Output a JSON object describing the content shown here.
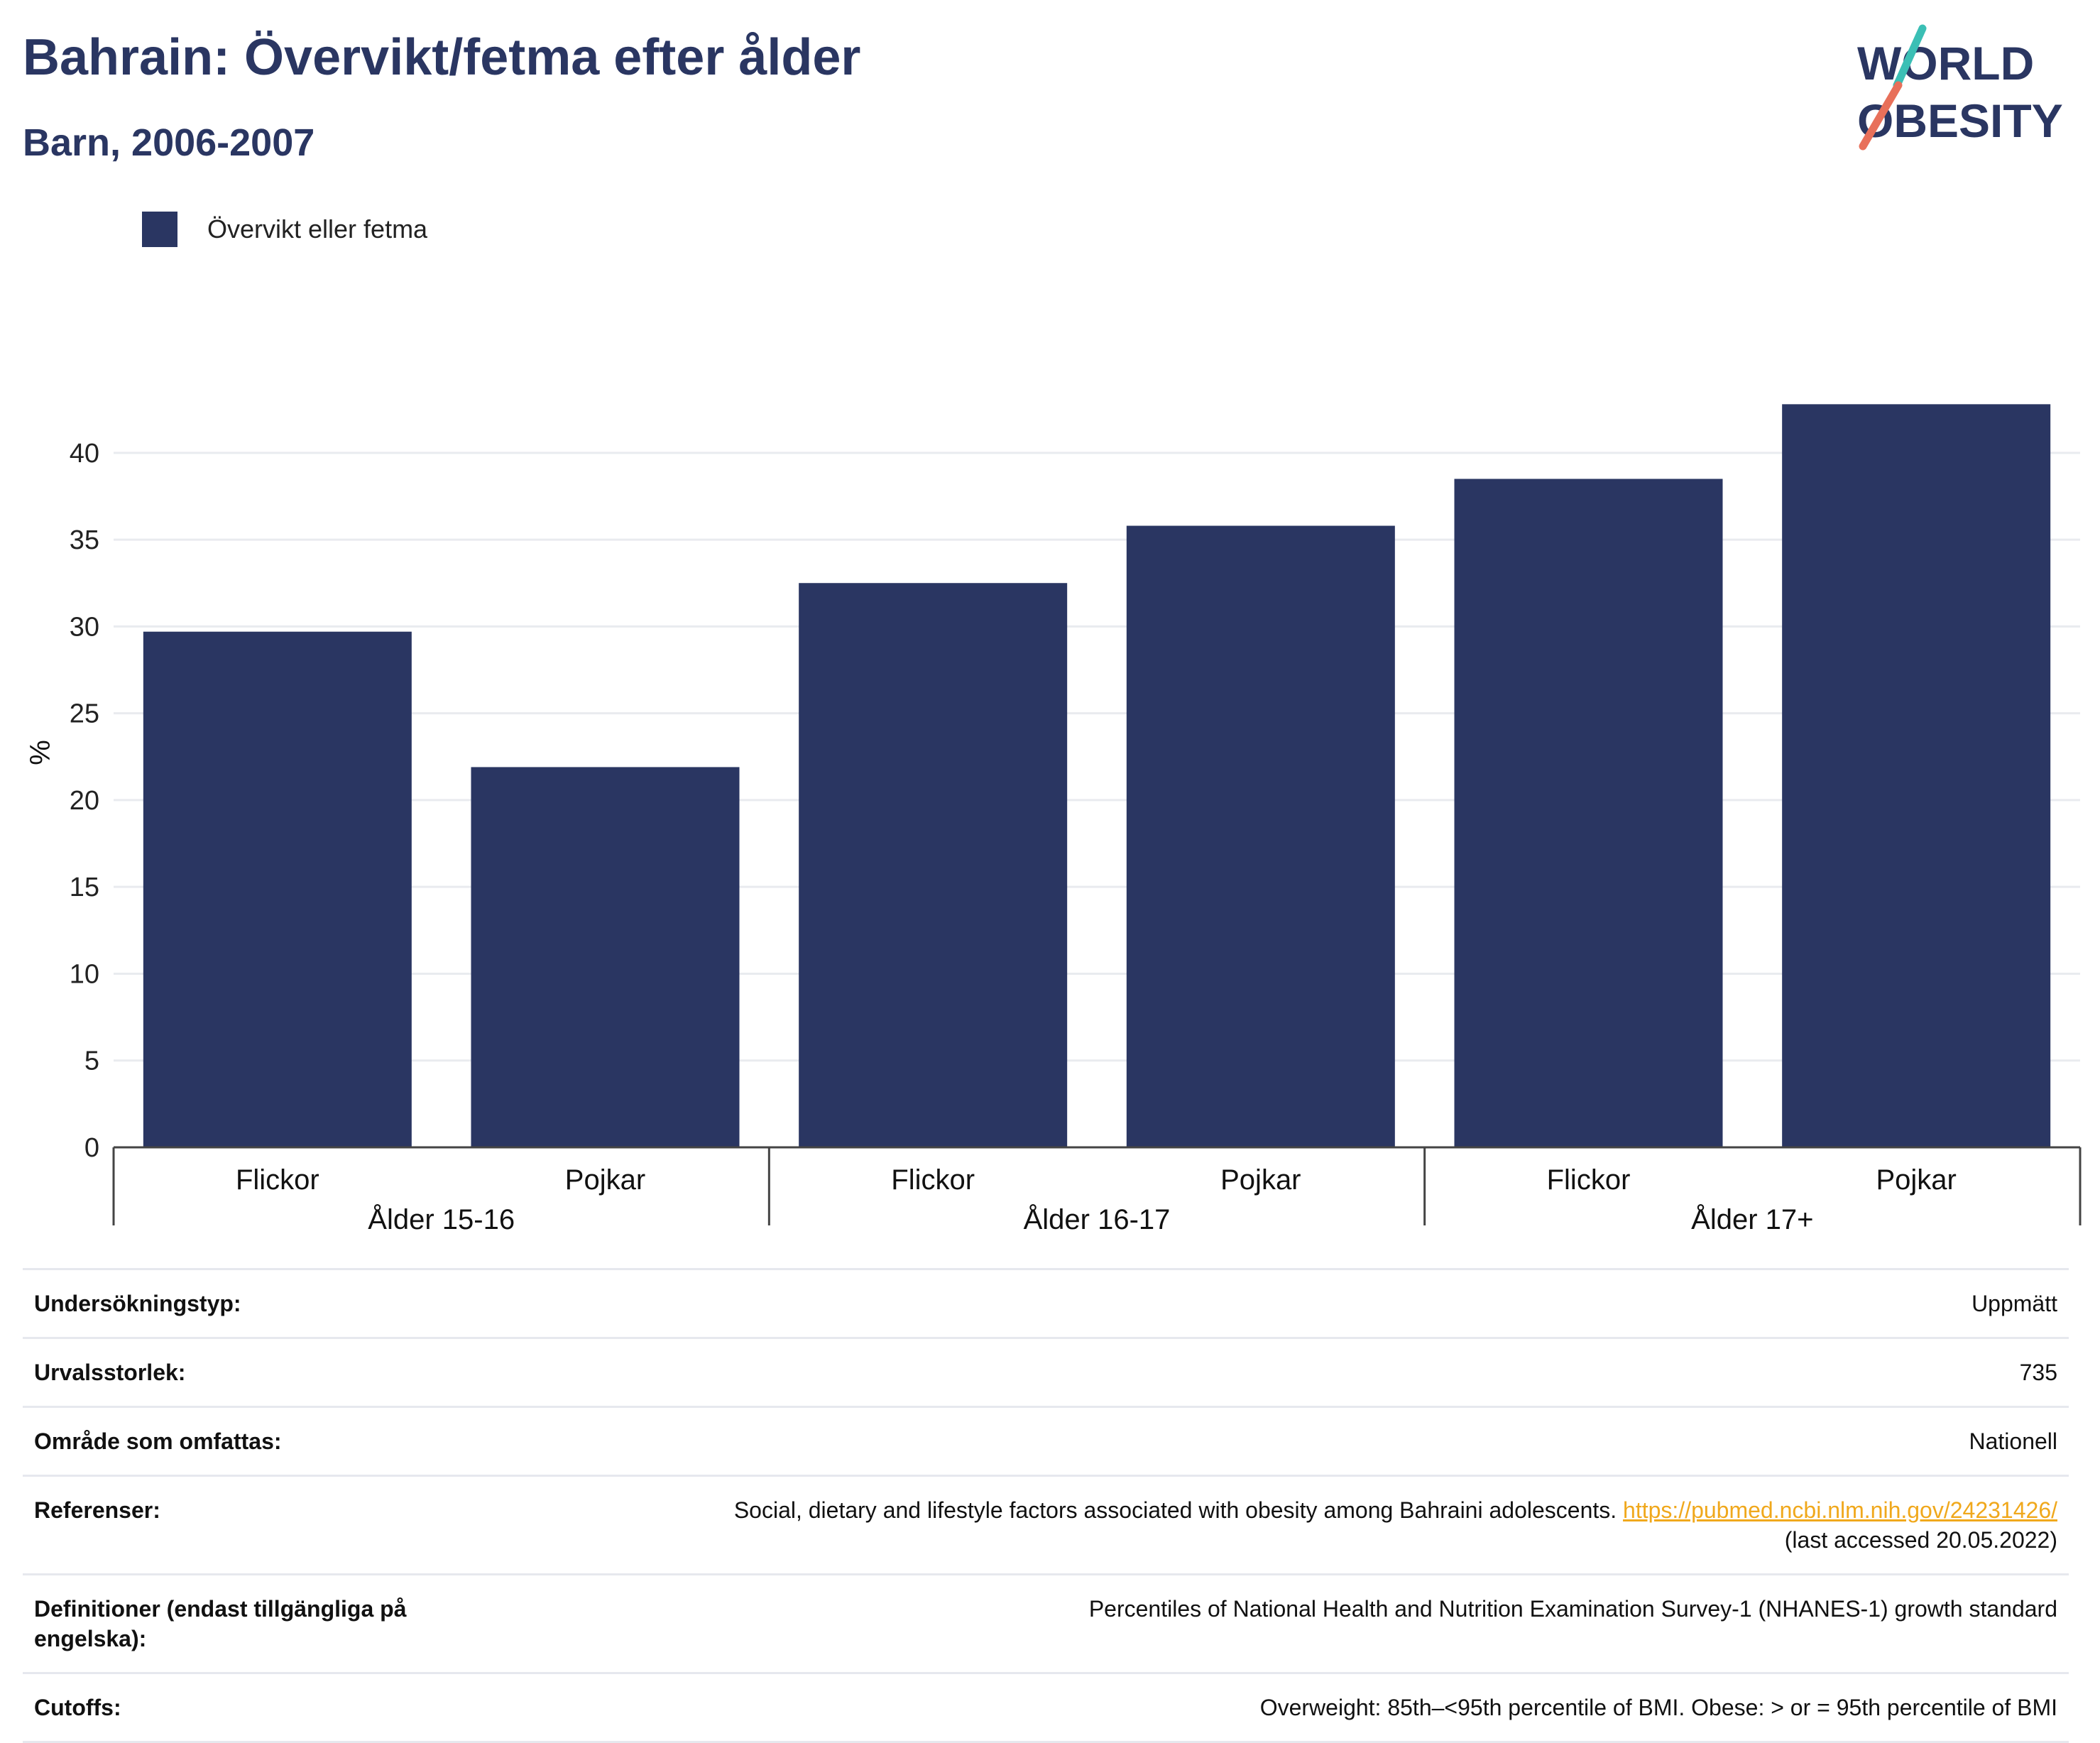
{
  "header": {
    "title": "Bahrain: Övervikt/fetma efter ålder",
    "subtitle": "Barn, 2006-2007"
  },
  "logo": {
    "line1": "WORLD",
    "line2": "OBESITY",
    "colors": {
      "text": "#2a3662",
      "slash_top": "#3bbfb5",
      "slash_bottom": "#e8705a"
    }
  },
  "legend": {
    "items": [
      {
        "label": "Övervikt eller fetma",
        "color": "#2a3662"
      }
    ]
  },
  "chart_data": {
    "type": "bar",
    "ylabel": "%",
    "ylim": [
      0,
      44
    ],
    "yticks": [
      0,
      5,
      10,
      15,
      20,
      25,
      30,
      35,
      40
    ],
    "grid": true,
    "legend_position": "top-left",
    "bar_color": "#2a3662",
    "groups": [
      {
        "label": "Ålder 15-16",
        "categories": [
          "Flickor",
          "Pojkar"
        ],
        "values": [
          29.7,
          21.9
        ]
      },
      {
        "label": "Ålder 16-17",
        "categories": [
          "Flickor",
          "Pojkar"
        ],
        "values": [
          32.5,
          35.8
        ]
      },
      {
        "label": "Ålder 17+",
        "categories": [
          "Flickor",
          "Pojkar"
        ],
        "values": [
          38.5,
          42.8
        ]
      }
    ],
    "series": [
      {
        "name": "Övervikt eller fetma"
      }
    ]
  },
  "info": {
    "survey_type": {
      "label": "Undersökningstyp:",
      "value": "Uppmätt"
    },
    "sample_size": {
      "label": "Urvalsstorlek:",
      "value": "735"
    },
    "coverage": {
      "label": "Område som omfattas:",
      "value": "Nationell"
    },
    "references": {
      "label": "Referenser:",
      "text": "Social, dietary and lifestyle factors associated with obesity among Bahraini adolescents.",
      "link": "https://pubmed.ncbi.nlm.nih.gov/24231426/",
      "accessed": "(last accessed 20.05.2022)"
    },
    "definitions": {
      "label": "Definitioner (endast tillgängliga på engelska):",
      "value": "Percentiles of National Health and Nutrition Examination Survey-1 (NHANES-1) growth standard"
    },
    "cutoffs": {
      "label": "Cutoffs:",
      "value": "Overweight: 85th–<95th percentile of BMI. Obese: > or = 95th percentile of BMI"
    }
  }
}
